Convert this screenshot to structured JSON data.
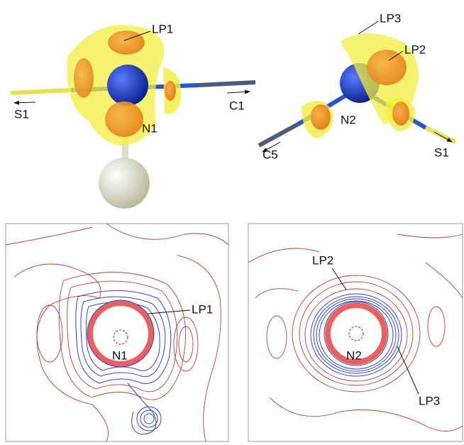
{
  "panels": [
    {
      "labels": [
        "LP1",
        "S1",
        "C1",
        "N1"
      ]
    },
    {
      "labels": [
        "LP3",
        "LP2",
        "N2",
        "C5",
        "S1"
      ]
    },
    {
      "labels": [
        "LP1",
        "N1"
      ]
    },
    {
      "labels": [
        "LP2",
        "N2",
        "LP3"
      ]
    }
  ]
}
